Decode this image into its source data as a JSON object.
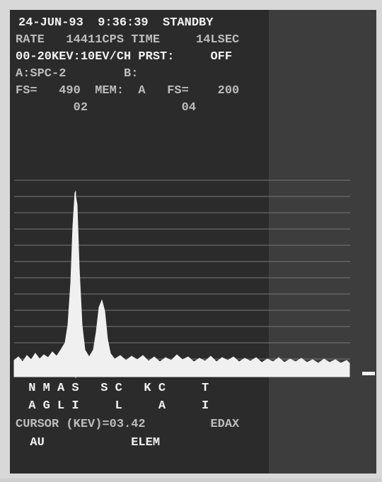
{
  "header": {
    "lines": [
      "24-JUN-93  9:36:39  STANDBY",
      "RATE   14411CPS TIME     14LSEC",
      "00-20KEV:10EV/CH PRST:     OFF",
      "A:SPC-2        B:",
      "FS=   490  MEM:  A   FS=    200",
      "        02             04"
    ]
  },
  "footer": {
    "lines": [
      " N M A S   S C   K C     T",
      " A G L I     L     A     I",
      "CURSOR (KEV)=03.42         EDAX",
      "  AU            ELEM"
    ]
  }
}
